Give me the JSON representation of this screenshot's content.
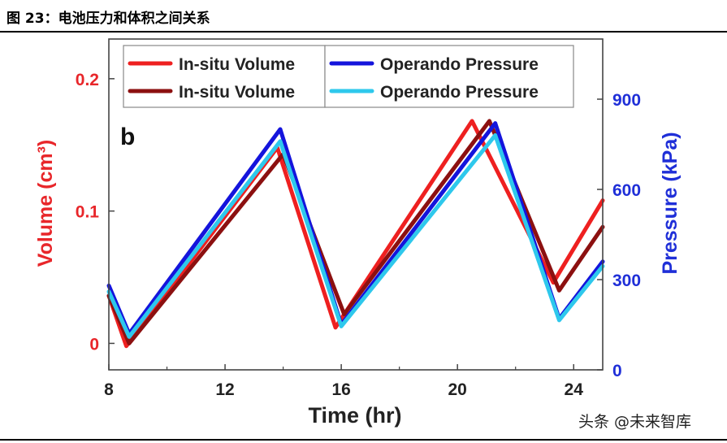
{
  "figure_title": "图 23：电池压力和体积之间关系",
  "watermark": "头条 @未来智库",
  "chart_data": {
    "type": "line",
    "panel_label": "b",
    "xlabel": "Time (hr)",
    "ylabel_left": "Volume (cm³)",
    "ylabel_right": "Pressure (kPa)",
    "x_ticks": [
      8,
      12,
      16,
      20,
      24
    ],
    "y_left_ticks": [
      0,
      0.1,
      0.2
    ],
    "y_left_tick_labels": [
      "0",
      "0.1",
      "0.2"
    ],
    "y_right_ticks": [
      0,
      300,
      600,
      900
    ],
    "xlim": [
      8,
      25
    ],
    "ylim_left": [
      -0.02,
      0.23
    ],
    "ylim_right": [
      0,
      1100
    ],
    "grid": false,
    "legend_position": "top",
    "colors": {
      "left_axis": "#e8262a",
      "right_axis": "#1f2fd8",
      "frame": "#444444"
    },
    "series": [
      {
        "name": "In-situ Volume",
        "axis": "left",
        "color": "#ee2020",
        "x": [
          8,
          8.6,
          13.8,
          15.8,
          20.5,
          23.3,
          25
        ],
        "y": [
          0.036,
          -0.002,
          0.148,
          0.012,
          0.168,
          0.046,
          0.108
        ]
      },
      {
        "name": "In-situ Volume",
        "axis": "left",
        "color": "#8c1010",
        "x": [
          8,
          8.7,
          14.0,
          16.1,
          21.1,
          23.5,
          25
        ],
        "y": [
          0.036,
          0.0,
          0.143,
          0.022,
          0.168,
          0.04,
          0.088
        ]
      },
      {
        "name": "Operando Pressure",
        "axis": "right",
        "color": "#1414dc",
        "x": [
          8,
          8.7,
          13.9,
          16.0,
          21.3,
          23.5,
          25
        ],
        "y": [
          280,
          120,
          800,
          150,
          820,
          170,
          360
        ]
      },
      {
        "name": "Operando Pressure",
        "axis": "right",
        "color": "#2ec8ec",
        "x": [
          8,
          8.7,
          13.9,
          16.0,
          21.3,
          23.5,
          25
        ],
        "y": [
          260,
          110,
          760,
          145,
          780,
          165,
          345
        ]
      }
    ]
  }
}
